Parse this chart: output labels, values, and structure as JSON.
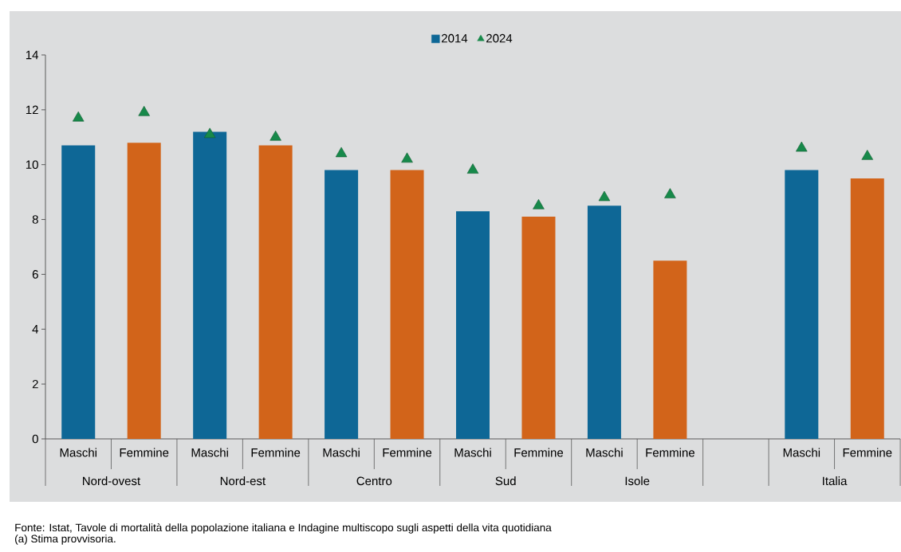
{
  "chart_data": {
    "type": "bar",
    "categories": [
      "Maschi",
      "Femmine",
      "Maschi",
      "Femmine",
      "Maschi",
      "Femmine",
      "Maschi",
      "Femmine",
      "Maschi",
      "Femmine",
      null,
      "Maschi",
      "Femmine"
    ],
    "series": [
      {
        "name": "2014",
        "color": "#0e6796",
        "colors": [
          "#0e6796",
          "#d2641a",
          "#0e6796",
          "#d2641a",
          "#0e6796",
          "#d2641a",
          "#0e6796",
          "#d2641a",
          "#0e6796",
          "#d2641a",
          null,
          "#0e6796",
          "#d2641a"
        ],
        "values": [
          10.7,
          10.8,
          11.2,
          10.7,
          9.8,
          9.8,
          8.3,
          8.1,
          8.5,
          6.5,
          null,
          9.8,
          9.5
        ]
      },
      {
        "name": "2024",
        "type": "scatter",
        "marker": "triangle",
        "color": "#17894a",
        "values": [
          11.7,
          11.9,
          11.1,
          11.0,
          10.4,
          10.2,
          9.8,
          8.5,
          8.8,
          8.9,
          null,
          10.6,
          10.3
        ]
      }
    ],
    "ylim": [
      0,
      14
    ],
    "yticks": [
      0,
      2,
      4,
      6,
      8,
      10,
      12,
      14
    ],
    "grid": false,
    "legend": "top",
    "annotations": [
      "Nord-ovest",
      "Nord-est",
      "Centro",
      "Sud",
      "Isole",
      "Italia",
      "Fonte: Istat, Tavole di mortalità della popolazione italiana e Indagine multiscopo sugli aspetti della vita quotidiana",
      "(a) Stima provvisoria."
    ]
  }
}
